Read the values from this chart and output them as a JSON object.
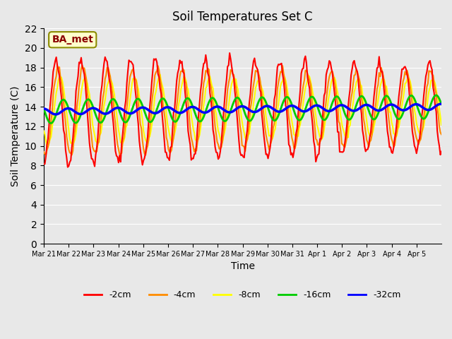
{
  "title": "Soil Temperatures Set C",
  "xlabel": "Time",
  "ylabel": "Soil Temperature (C)",
  "ylim": [
    0,
    22
  ],
  "yticks": [
    0,
    2,
    4,
    6,
    8,
    10,
    12,
    14,
    16,
    18,
    20,
    22
  ],
  "xtick_labels": [
    "Mar 21",
    "Mar 22",
    "Mar 23",
    "Mar 24",
    "Mar 25",
    "Mar 26",
    "Mar 27",
    "Mar 28",
    "Mar 29",
    "Mar 30",
    "Mar 31",
    "Apr 1",
    "Apr 2",
    "Apr 3",
    "Apr 4",
    "Apr 5"
  ],
  "annotation_text": "BA_met",
  "annotation_color": "#8B0000",
  "annotation_bg": "#FFFFCC",
  "bg_color": "#E8E8E8",
  "line_colors": {
    "-2cm": "#FF0000",
    "-4cm": "#FF8C00",
    "-8cm": "#FFFF00",
    "-16cm": "#00CC00",
    "-32cm": "#0000FF"
  },
  "line_widths": {
    "-2cm": 1.5,
    "-4cm": 1.5,
    "-8cm": 1.5,
    "-16cm": 2.0,
    "-32cm": 2.5
  },
  "legend_entries": [
    "-2cm",
    "-4cm",
    "-8cm",
    "-16cm",
    "-32cm"
  ]
}
